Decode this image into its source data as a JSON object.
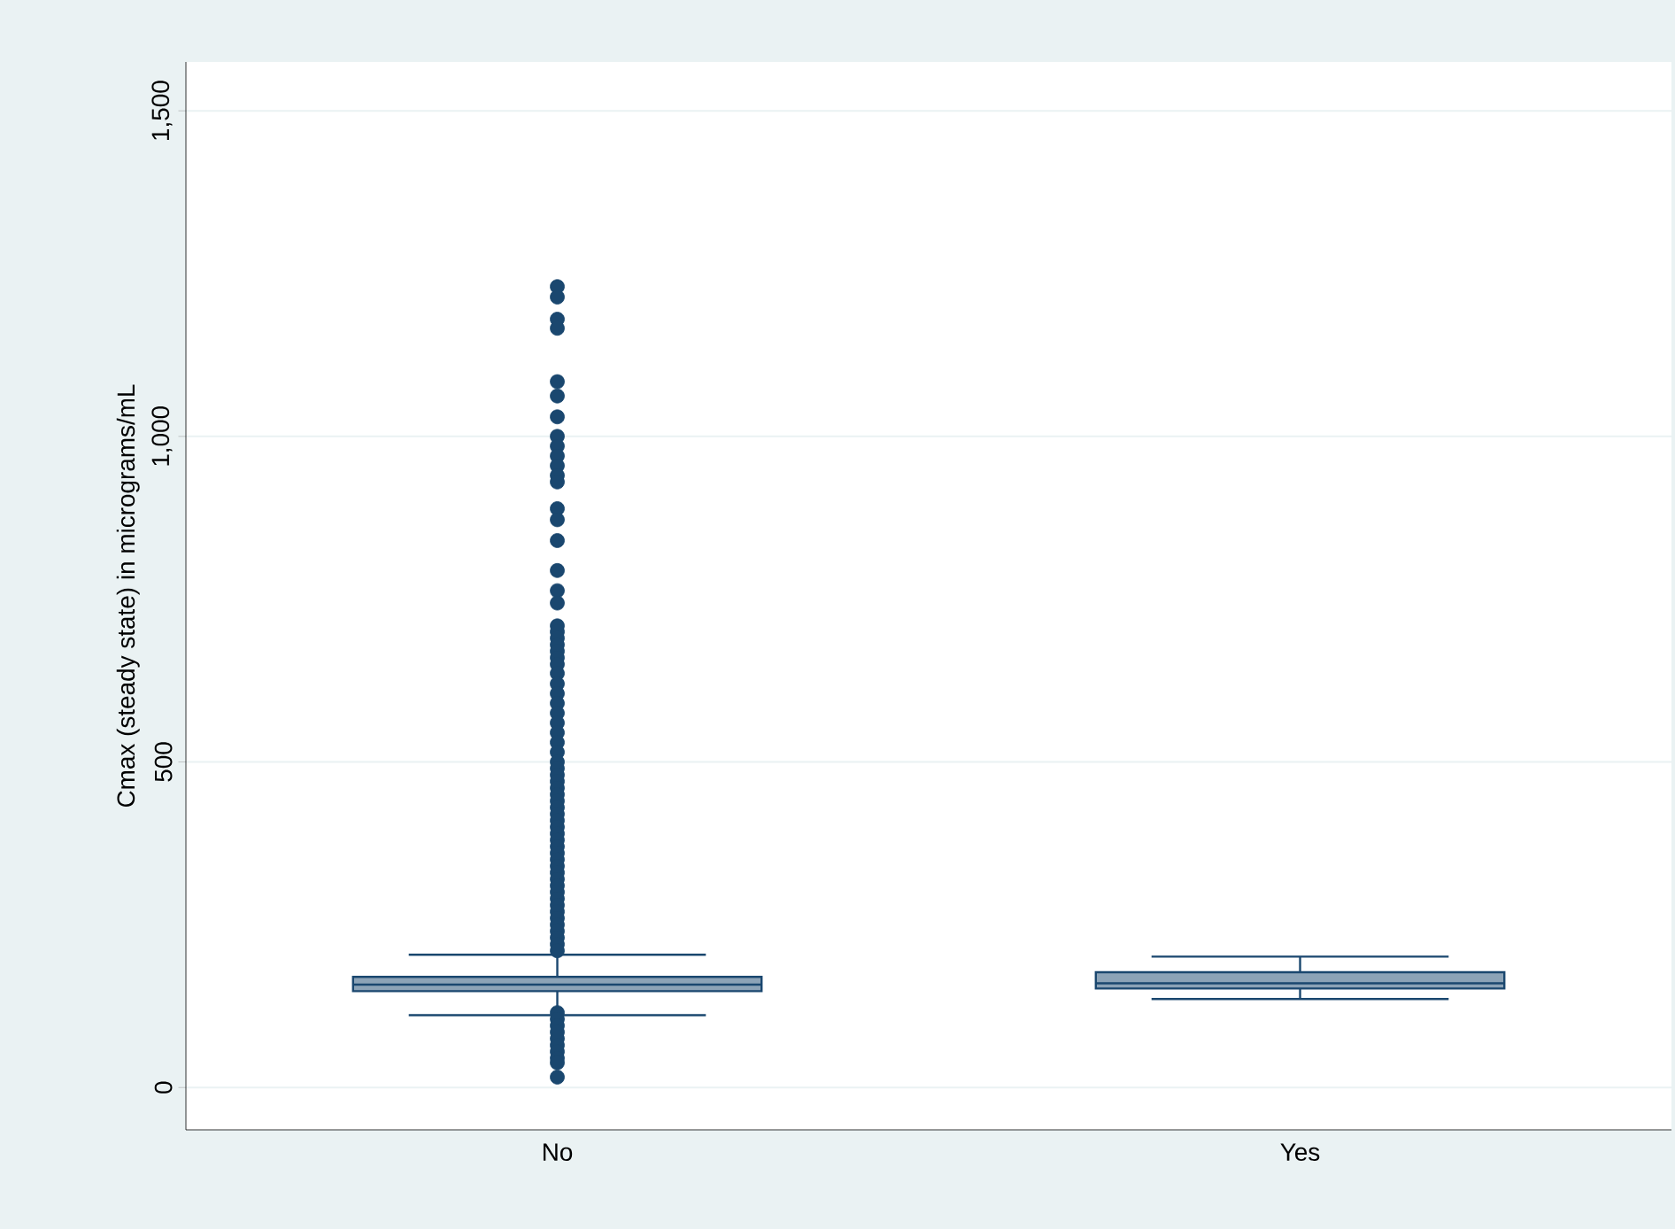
{
  "chart_data": {
    "type": "box",
    "ylabel": "Cmax (steady state) in micrograms/mL",
    "categories": [
      "No",
      "Yes"
    ],
    "boxes": [
      {
        "low": 111,
        "q1": 148,
        "median": 158,
        "q3": 170,
        "high": 204,
        "outliers": [
          1230,
          1214,
          1180,
          1166,
          1084,
          1062,
          1030,
          1000,
          985,
          970,
          955,
          940,
          930,
          889,
          872,
          840,
          794,
          763,
          744,
          709,
          700,
          690,
          680,
          670,
          660,
          650,
          636,
          620,
          605,
          590,
          575,
          560,
          545,
          530,
          515,
          500,
          490,
          480,
          470,
          460,
          450,
          440,
          430,
          420,
          410,
          400,
          390,
          380,
          370,
          360,
          350,
          340,
          330,
          320,
          310,
          300,
          290,
          280,
          270,
          260,
          250,
          240,
          230,
          220,
          210,
          115,
          105,
          95,
          85,
          75,
          65,
          55,
          45,
          38,
          16
        ]
      },
      {
        "low": 136,
        "q1": 152,
        "median": 160,
        "q3": 177,
        "high": 201
      }
    ],
    "color": "#1a476f",
    "ylim": [
      -65,
      1575
    ],
    "yticks": [
      0,
      {
        "value": 500,
        "label": "500"
      },
      {
        "value": 1000,
        "label": "1,000"
      },
      {
        "value": 1500,
        "label": "1,500"
      }
    ],
    "grid": "y"
  }
}
